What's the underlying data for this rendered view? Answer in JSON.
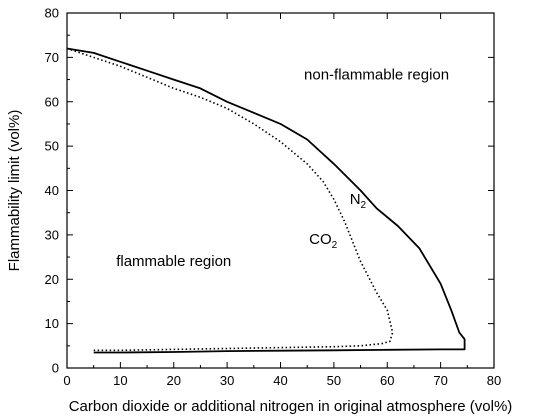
{
  "chart_data": {
    "type": "line",
    "title": "",
    "xlabel": "Carbon dioxide or additional nitrogen in original atmosphere (vol%)",
    "ylabel": "Flammability limit (vol%)",
    "xlim": [
      0,
      80
    ],
    "ylim": [
      0,
      80
    ],
    "xticks": [
      "0",
      "10",
      "20",
      "30",
      "40",
      "50",
      "60",
      "70",
      "80"
    ],
    "yticks": [
      "0",
      "10",
      "20",
      "30",
      "40",
      "50",
      "60",
      "70",
      "80"
    ],
    "grid": false,
    "legend": "none",
    "annotations": [
      {
        "text": "non-flammable region",
        "x": 58,
        "y": 65
      },
      {
        "text": "flammable region",
        "x": 20,
        "y": 23
      },
      {
        "main": "N",
        "sub": "2",
        "x": 54.5,
        "y": 37
      },
      {
        "main": "CO",
        "sub": "2",
        "x": 48,
        "y": 28
      }
    ],
    "series": [
      {
        "label": "N2",
        "style": "solid",
        "x": [
          0,
          5,
          10,
          15,
          20,
          25,
          30,
          35,
          40,
          45,
          50,
          55,
          58,
          62,
          66,
          70,
          72,
          73.5,
          74.5,
          74.5,
          70,
          60,
          50,
          40,
          30,
          20,
          10,
          5
        ],
        "y": [
          72,
          71,
          69,
          67,
          65,
          63,
          60,
          57.5,
          55,
          51.5,
          46,
          40,
          36,
          32,
          27,
          19,
          13,
          8,
          6.5,
          4.2,
          4.2,
          4.1,
          4,
          3.9,
          3.8,
          3.6,
          3.5,
          3.5
        ]
      },
      {
        "label": "CO2",
        "style": "dotted",
        "x": [
          0,
          5,
          10,
          15,
          20,
          25,
          30,
          35,
          40,
          45,
          48,
          50,
          52,
          55,
          58,
          60,
          61,
          60.5,
          59,
          55,
          50,
          40,
          30,
          20,
          10,
          5
        ],
        "y": [
          72,
          70,
          68,
          65.5,
          63,
          61,
          58.5,
          55,
          51,
          46,
          42,
          38,
          33,
          24,
          17,
          13,
          8,
          6,
          5.5,
          5,
          4.8,
          4.6,
          4.4,
          4.2,
          4,
          4
        ]
      }
    ]
  }
}
